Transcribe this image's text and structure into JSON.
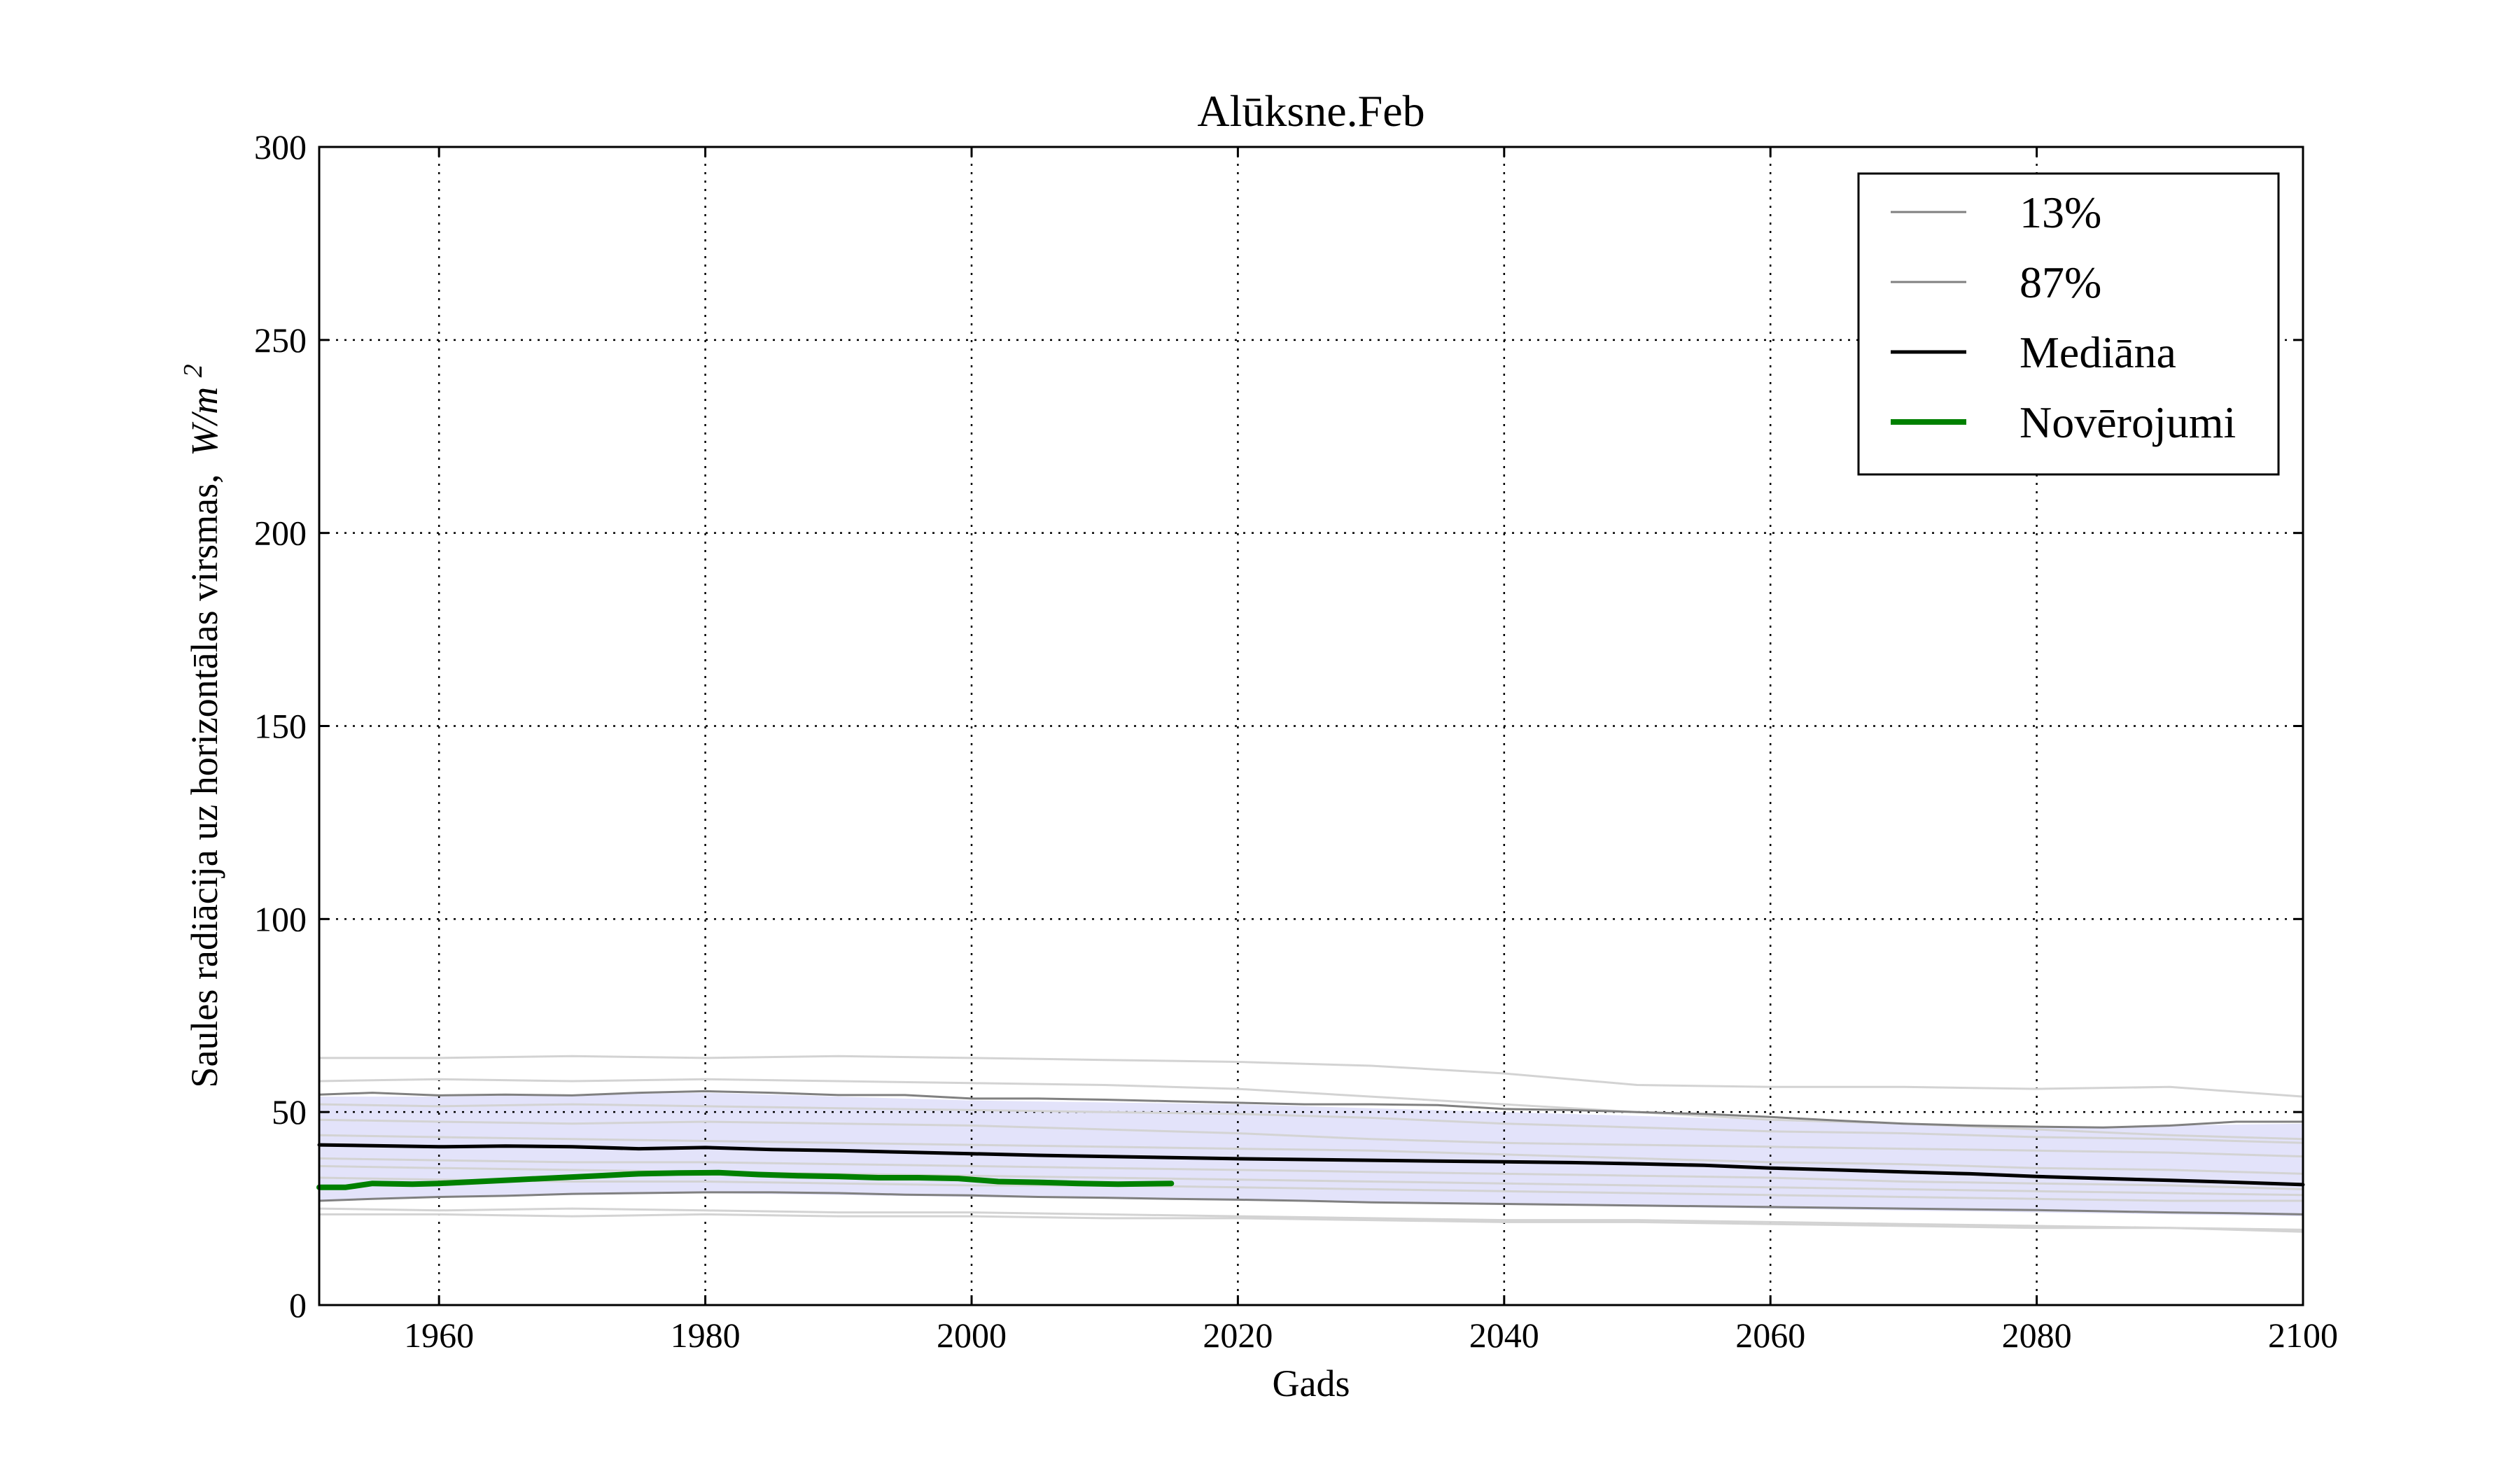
{
  "chart_data": {
    "type": "line",
    "title": "Alūksne.Feb",
    "xlabel": "Gads",
    "ylabel": "Saules radiācija uz horizontālas virsmas,",
    "ylabel_unit_symbol": "W/m",
    "ylabel_unit_exponent": "2",
    "xlim": [
      1951,
      2100
    ],
    "ylim": [
      0,
      300
    ],
    "xticks": [
      1960,
      1980,
      2000,
      2020,
      2040,
      2060,
      2080,
      2100
    ],
    "yticks": [
      0,
      50,
      100,
      150,
      200,
      250,
      300
    ],
    "grid": true,
    "legend_position": "top-right",
    "band": {
      "fill_color": "#e3e3fa",
      "x": [
        1951,
        1960,
        1980,
        2000,
        2020,
        2040,
        2060,
        2080,
        2100
      ],
      "lower": [
        27,
        28,
        29,
        28,
        27,
        26,
        25,
        24,
        23
      ],
      "upper": [
        54,
        54,
        55,
        53,
        52,
        50,
        48,
        46,
        47
      ]
    },
    "series": [
      {
        "name": "13%",
        "color": "#808080",
        "width": 3,
        "x": [
          1951,
          1955,
          1960,
          1965,
          1970,
          1975,
          1980,
          1985,
          1990,
          1995,
          2000,
          2005,
          2010,
          2015,
          2020,
          2025,
          2030,
          2035,
          2040,
          2045,
          2050,
          2055,
          2060,
          2065,
          2070,
          2075,
          2080,
          2085,
          2090,
          2095,
          2100
        ],
        "values": [
          27,
          27.5,
          28,
          28.3,
          28.8,
          29,
          29.2,
          29.2,
          29,
          28.6,
          28.4,
          28,
          27.8,
          27.5,
          27.3,
          27,
          26.6,
          26.4,
          26.2,
          26,
          25.8,
          25.6,
          25.4,
          25.2,
          25,
          24.8,
          24.6,
          24.3,
          24,
          23.8,
          23.5
        ]
      },
      {
        "name": "87%",
        "color": "#808080",
        "width": 3,
        "x": [
          1951,
          1955,
          1960,
          1965,
          1970,
          1975,
          1980,
          1985,
          1990,
          1995,
          2000,
          2005,
          2010,
          2015,
          2020,
          2025,
          2030,
          2035,
          2040,
          2045,
          2050,
          2055,
          2060,
          2065,
          2070,
          2075,
          2080,
          2085,
          2090,
          2095,
          2100
        ],
        "values": [
          54.5,
          55,
          54.3,
          54.5,
          54.3,
          55,
          55.4,
          55,
          54.4,
          54.4,
          53.5,
          53.5,
          53.2,
          52.8,
          52.4,
          52,
          52,
          51.8,
          50.8,
          50.5,
          50,
          49.5,
          48.7,
          47.8,
          47,
          46.5,
          46.2,
          46,
          46.5,
          47.5,
          47.5
        ]
      },
      {
        "name": "Mediāna",
        "color": "#000000",
        "width": 5,
        "x": [
          1951,
          1955,
          1960,
          1965,
          1970,
          1975,
          1980,
          1985,
          1990,
          1995,
          2000,
          2005,
          2010,
          2015,
          2020,
          2025,
          2030,
          2035,
          2040,
          2045,
          2050,
          2055,
          2060,
          2065,
          2070,
          2075,
          2080,
          2085,
          2090,
          2095,
          2100
        ],
        "values": [
          41.5,
          41.3,
          41,
          41.2,
          41,
          40.5,
          40.8,
          40.3,
          40,
          39.6,
          39.2,
          38.8,
          38.5,
          38.2,
          37.9,
          37.7,
          37.5,
          37.3,
          37.1,
          36.9,
          36.6,
          36.2,
          35.5,
          35,
          34.5,
          34,
          33.3,
          32.8,
          32.3,
          31.8,
          31.2
        ]
      },
      {
        "name": "Novērojumi",
        "color": "#008000",
        "width": 8,
        "x": [
          1951,
          1953,
          1955,
          1958,
          1960,
          1963,
          1966,
          1969,
          1972,
          1975,
          1978,
          1981,
          1984,
          1987,
          1990,
          1993,
          1996,
          1999,
          2002,
          2005,
          2008,
          2011,
          2015
        ],
        "values": [
          30.5,
          30.5,
          31.5,
          31.3,
          31.5,
          32,
          32.5,
          33,
          33.5,
          34,
          34.2,
          34.3,
          33.8,
          33.5,
          33.3,
          33,
          33,
          32.8,
          32,
          31.8,
          31.5,
          31.3,
          31.5
        ]
      }
    ],
    "background_lines": {
      "color": "#d3d3d3",
      "width": 3,
      "x": [
        1951,
        1960,
        1970,
        1980,
        1990,
        2000,
        2010,
        2020,
        2030,
        2040,
        2050,
        2060,
        2070,
        2080,
        2090,
        2100
      ],
      "lines": [
        [
          64,
          64,
          64.5,
          64,
          64.5,
          64,
          63.5,
          63,
          62,
          60,
          57,
          56.5,
          56.5,
          56,
          56.5,
          54
        ],
        [
          58,
          58.5,
          58,
          58.5,
          58,
          57.5,
          57,
          56,
          54,
          52,
          50,
          48,
          47,
          45.5,
          44,
          43
        ],
        [
          52,
          51.5,
          52,
          51.5,
          51,
          50.5,
          50,
          49.5,
          48.5,
          47,
          46,
          45,
          44.5,
          43.5,
          43,
          42
        ],
        [
          48,
          47.5,
          47,
          47.5,
          47,
          46.5,
          45.5,
          44.5,
          43,
          42,
          41.5,
          41,
          40.5,
          40,
          39.5,
          38.5
        ],
        [
          44,
          43.5,
          43,
          42.5,
          42,
          41.5,
          41,
          40.5,
          40,
          39,
          38,
          37,
          36.5,
          35.5,
          35,
          34
        ],
        [
          38,
          37.5,
          37,
          37,
          36.5,
          36,
          35.5,
          35,
          34.5,
          34,
          33.5,
          33,
          32,
          31.5,
          31,
          30
        ],
        [
          36,
          35.5,
          35,
          34.5,
          34,
          33.5,
          33,
          32.5,
          32,
          31.5,
          31,
          30.5,
          30,
          29.5,
          29,
          28.5
        ],
        [
          33,
          32.5,
          32,
          32,
          31.5,
          31,
          31,
          30.5,
          30,
          29.5,
          29,
          28.5,
          28,
          27.5,
          27,
          27
        ],
        [
          25,
          24.5,
          25,
          24.5,
          24,
          24,
          23.5,
          23,
          22.5,
          22,
          22,
          21.5,
          21,
          20.5,
          20,
          19
        ],
        [
          23.5,
          23.5,
          23,
          23.5,
          23,
          23,
          22.5,
          22.5,
          22,
          21.5,
          21.5,
          21,
          20.5,
          20,
          20,
          19.5
        ]
      ]
    }
  }
}
